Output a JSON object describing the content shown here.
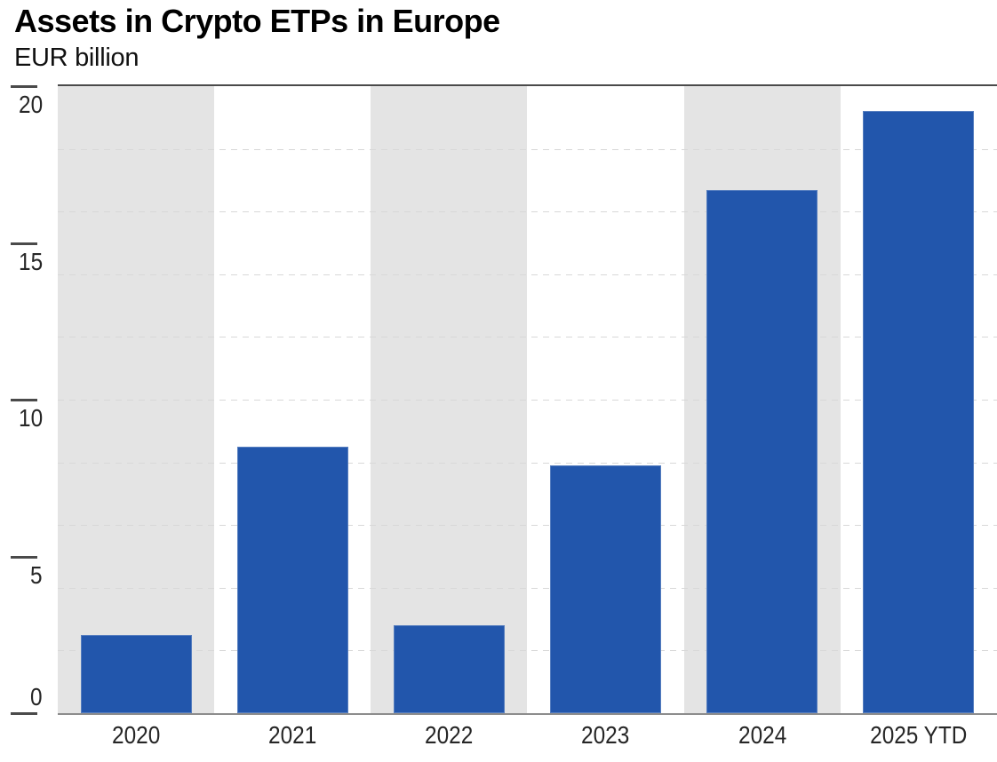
{
  "header": {
    "title": "Assets in Crypto ETPs in Europe",
    "subtitle": "EUR billion"
  },
  "chart_data": {
    "type": "bar",
    "title": "Assets in Crypto ETPs in Europe",
    "subtitle": "EUR billion",
    "xlabel": "",
    "ylabel": "EUR billion",
    "categories": [
      "2020",
      "2021",
      "2022",
      "2023",
      "2024",
      "2025 YTD"
    ],
    "values": [
      2.5,
      8.5,
      2.8,
      7.9,
      16.7,
      19.2
    ],
    "ylim": [
      0,
      20
    ],
    "yticks": [
      0,
      5,
      10,
      15,
      20
    ],
    "gridline_interval": 2,
    "grid_style": "horizontal dashed, every 2 units, drawn behind bars",
    "legend": "none",
    "background_bands": "alternating vertical column bands starting gray",
    "colors": {
      "bar": "#2256AC",
      "band_gray": "#E4E4E4",
      "gridline": "#D8D8D8",
      "frame_top": "#4A4A4A",
      "baseline": "#8C8C8C",
      "tick": "#4A4A4A",
      "label": "#262626"
    }
  }
}
